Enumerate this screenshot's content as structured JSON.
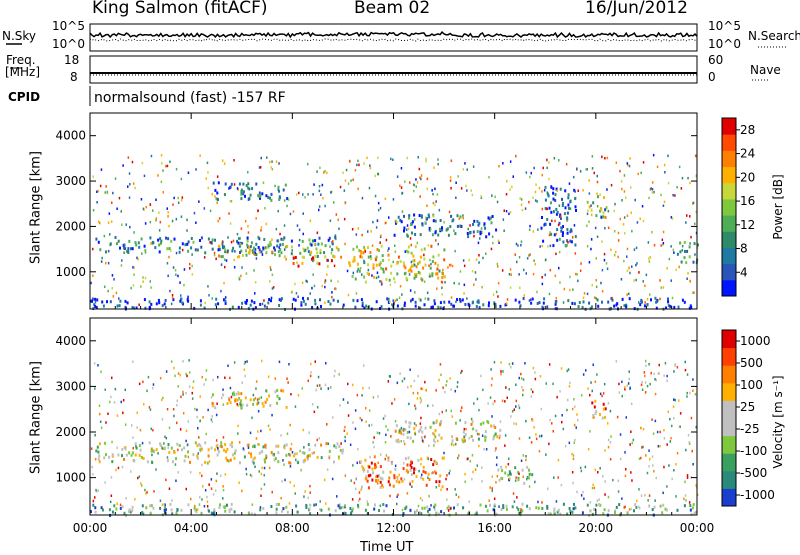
{
  "header": {
    "station": "King Salmon (fitACF)",
    "beam": "Beam 02",
    "date": "16/Jun/2012"
  },
  "strip": {
    "nsky_label": "N.Sky",
    "nsearch_label": "N.Search",
    "freq_label_1": "Freq.",
    "freq_label_2": "[MHz]",
    "nave_label": "Nave",
    "cpid_label": "CPID",
    "cpid_text": "normalsound (fast) -157 RF",
    "noise_left_ticks": [
      "10^5",
      "10^0"
    ],
    "noise_right_ticks": [
      "10^5",
      "10^0"
    ],
    "freq_ticks": [
      "18",
      "8"
    ],
    "nave_ticks": [
      "60",
      "0"
    ]
  },
  "chart_data": [
    {
      "type": "heatmap",
      "panel": "power",
      "ylabel": "Slant Range [km]",
      "xlabel": "",
      "x_ticks": [
        "00:00",
        "04:00",
        "08:00",
        "12:00",
        "16:00",
        "20:00",
        "00:00"
      ],
      "xlim_hours": [
        0,
        24
      ],
      "y_ticks": [
        1000,
        2000,
        3000,
        4000
      ],
      "ylim": [
        180,
        4500
      ],
      "colorbar": {
        "label": "Power [dB]",
        "ticks": [
          "4",
          "8",
          "12",
          "16",
          "20",
          "24",
          "28"
        ],
        "colors": [
          "#0014ff",
          "#2a55b8",
          "#1e7aa3",
          "#2f8a6a",
          "#4fae55",
          "#7ec840",
          "#c8d83a",
          "#ffb000",
          "#ff8000",
          "#ff4a00",
          "#e00000"
        ],
        "range": [
          0,
          30
        ]
      },
      "echo_bands": [
        {
          "t0": 0.2,
          "t1": 9.8,
          "r0": 1450,
          "r1": 1800,
          "level": 0.25
        },
        {
          "t0": 5.0,
          "t1": 10.0,
          "r0": 1350,
          "r1": 1650,
          "level": 0.55
        },
        {
          "t0": 8.0,
          "t1": 9.8,
          "r0": 1150,
          "r1": 1350,
          "level": 0.8
        },
        {
          "t0": 10.2,
          "t1": 14.0,
          "r0": 800,
          "r1": 1600,
          "level": 0.6
        },
        {
          "t0": 4.8,
          "t1": 7.8,
          "r0": 2600,
          "r1": 3000,
          "level": 0.2
        },
        {
          "t0": 12.0,
          "t1": 16.2,
          "r0": 1800,
          "r1": 2300,
          "level": 0.2
        },
        {
          "t0": 17.8,
          "t1": 19.2,
          "r0": 1600,
          "r1": 2900,
          "level": 0.15
        },
        {
          "t0": 19.6,
          "t1": 20.4,
          "r0": 2200,
          "r1": 2700,
          "level": 0.55
        },
        {
          "t0": 0.0,
          "t1": 24.0,
          "r0": 200,
          "r1": 450,
          "level": 0.1
        },
        {
          "t0": 23.2,
          "t1": 24.0,
          "r0": 1200,
          "r1": 1700,
          "level": 0.3
        }
      ]
    },
    {
      "type": "heatmap",
      "panel": "velocity",
      "ylabel": "Slant Range [km]",
      "xlabel": "Time UT",
      "x_ticks": [
        "00:00",
        "04:00",
        "08:00",
        "12:00",
        "16:00",
        "20:00",
        "00:00"
      ],
      "xlim_hours": [
        0,
        24
      ],
      "y_ticks": [
        1000,
        2000,
        3000,
        4000
      ],
      "ylim": [
        180,
        4500
      ],
      "colorbar": {
        "label": "Velocity [m s⁻¹]",
        "ticks": [
          "1000",
          "500",
          "100",
          "25",
          "-25",
          "-100",
          "-500",
          "-1000"
        ],
        "colors": [
          "#1a3fd0",
          "#2a8a7a",
          "#3aa060",
          "#7ec840",
          "#c0c0c0",
          "#c0c0c0",
          "#ffb000",
          "#ff8000",
          "#ff4000",
          "#e00000"
        ],
        "range": [
          -1000,
          1000
        ]
      },
      "echo_bands": [
        {
          "t0": 0.2,
          "t1": 10.0,
          "r0": 1350,
          "r1": 1800,
          "level": 0.5
        },
        {
          "t0": 4.8,
          "t1": 7.8,
          "r0": 2550,
          "r1": 2950,
          "level": 0.5
        },
        {
          "t0": 10.6,
          "t1": 14.0,
          "r0": 800,
          "r1": 1500,
          "level": 0.75
        },
        {
          "t0": 12.0,
          "t1": 16.2,
          "r0": 1800,
          "r1": 2300,
          "level": 0.5
        },
        {
          "t0": 16.0,
          "t1": 17.5,
          "r0": 900,
          "r1": 1300,
          "level": 0.3
        },
        {
          "t0": 19.6,
          "t1": 20.4,
          "r0": 2300,
          "r1": 2750,
          "level": 0.8
        },
        {
          "t0": 0.0,
          "t1": 24.0,
          "r0": 200,
          "r1": 450,
          "level": 0.3
        }
      ]
    }
  ]
}
